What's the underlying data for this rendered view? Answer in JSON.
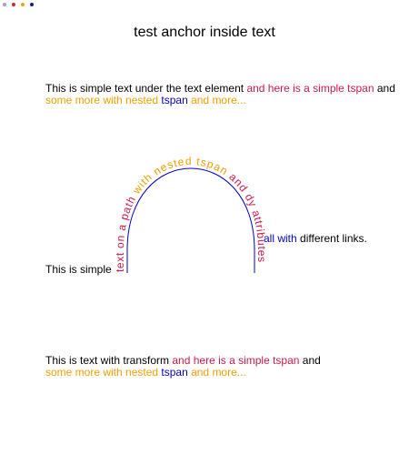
{
  "colors": {
    "black": "#000000",
    "crimson": "#cc1a4a",
    "orange": "#f0a000",
    "blue": "#0000cc",
    "purple": "#6a1a8a",
    "dot_lavender": "#a89bd8",
    "dot_red": "#d7262a",
    "dot_orange": "#e8a21a",
    "dot_navy": "#1a1a8a"
  },
  "title": "test anchor inside text",
  "block1": {
    "plain": "This is simple text under the text element ",
    "tspan": "and here is a simple tspan",
    "and": " and",
    "some_more": "some more with nested ",
    "nested": "tspan",
    "more": " and more..."
  },
  "path_text": {
    "left_label": "This is simple",
    "seg1": "text on a path ",
    "seg2": "with nested tspan ",
    "seg3": "and dy attributes",
    "after_blue": "all with",
    "after_black": " different links."
  },
  "block2": {
    "plain": "This is text with transform ",
    "tspan": "and here is a simple tspan",
    "and": " and",
    "some_more": "some more with nested ",
    "nested": "tspan",
    "more": " and more..."
  }
}
